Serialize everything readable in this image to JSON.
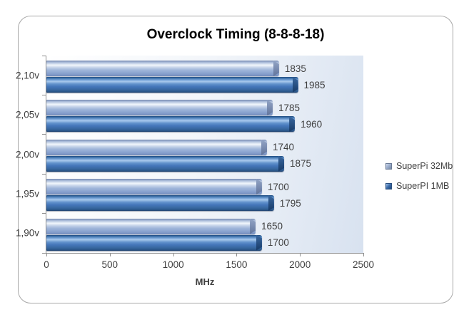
{
  "chart_data": {
    "type": "bar",
    "orientation": "horizontal",
    "title": "Overclock Timing (8-8-8-18)",
    "categories": [
      "2,10v",
      "2,05v",
      "2,00v",
      "1,95v",
      "1,90v"
    ],
    "series": [
      {
        "name": "SuperPi 32Mb",
        "color": "#9db4d9",
        "values": [
          1835,
          1785,
          1740,
          1700,
          1650
        ]
      },
      {
        "name": "SuperPI 1MB",
        "color": "#3a6cb4",
        "values": [
          1985,
          1960,
          1875,
          1795,
          1700
        ]
      }
    ],
    "xlabel": "MHz",
    "xlim": [
      0,
      2500
    ],
    "x_ticks": [
      "0",
      "500",
      "1000",
      "1500",
      "2000",
      "2500"
    ],
    "data_labels": true,
    "grid": false,
    "legend_position": "right",
    "plot_background_gradient": [
      "#ffffff",
      "#d8e2f0"
    ],
    "axis_color": "#8f8f8f",
    "label_color": "#3f3f3f",
    "frame_border_color": "#a8a8a8"
  }
}
